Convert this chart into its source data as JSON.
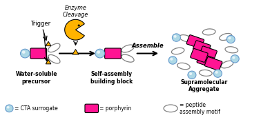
{
  "title": "",
  "bg_color": "#ffffff",
  "magenta": "#FF1493",
  "gold": "#FFB300",
  "light_blue": "#ADD8E6",
  "gray": "#808080",
  "text_trigger": "Trigger",
  "text_enzyme": "Enzyme\nCleavage",
  "text_assemble": "Assemble",
  "text_water": "Water-soluble\nprecursor",
  "text_selfassembly": "Self-assembly\nbuilding block",
  "text_supra": "Supramolecular\nAggregate",
  "legend_cta": "= CTA surrogate",
  "legend_porphyrin": "= porphyrin",
  "legend_peptide": "= peptide\nassembly motif",
  "figsize": [
    3.78,
    1.8
  ],
  "dpi": 100
}
